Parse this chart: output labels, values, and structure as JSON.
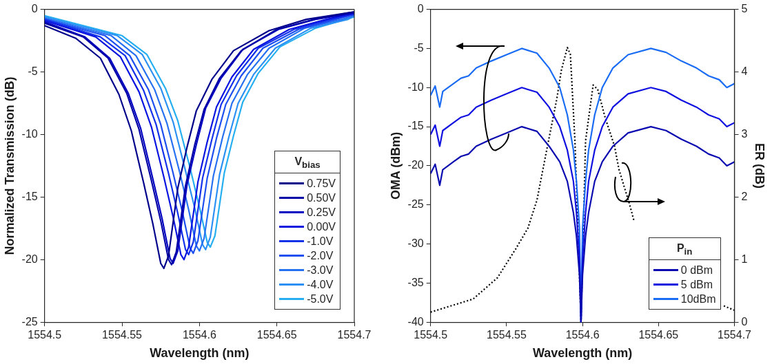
{
  "chart_data": [
    {
      "type": "line",
      "xlabel": "Wavelength (nm)",
      "ylabel": "Normalized Transmission (dB)",
      "legend_title": "V$_{bias}$",
      "xlim": [
        1554.5,
        1554.7
      ],
      "xticks": [
        1554.5,
        1554.55,
        1554.6,
        1554.65,
        1554.7
      ],
      "ylim": [
        -25,
        0
      ],
      "yticks": [
        -25,
        -20,
        -15,
        -10,
        -5,
        0
      ],
      "grid": false,
      "legend": "bottom right",
      "marker": "none",
      "line_style": "solid",
      "series": [
        {
          "name": "0.75V",
          "color": "#00008b",
          "x": [
            1554.5,
            1554.52,
            1554.536,
            1554.548,
            1554.556,
            1554.564,
            1554.57,
            1554.575,
            1554.577,
            1554.58,
            1554.586,
            1554.592,
            1554.598,
            1554.608,
            1554.622,
            1554.645,
            1554.669,
            1554.7
          ],
          "values": [
            -1.3,
            -2.3,
            -3.9,
            -6.8,
            -9.7,
            -13.9,
            -17.2,
            -20.3,
            -20.7,
            -19.7,
            -14.3,
            -11.0,
            -8.1,
            -5.6,
            -3.3,
            -1.7,
            -0.8,
            -0.2
          ]
        },
        {
          "name": "0.50V",
          "color": "#0000a6",
          "x": [
            1554.5,
            1554.525,
            1554.541,
            1554.553,
            1554.561,
            1554.569,
            1554.575,
            1554.58,
            1554.582,
            1554.585,
            1554.591,
            1554.597,
            1554.603,
            1554.613,
            1554.627,
            1554.65,
            1554.674,
            1554.7
          ],
          "values": [
            -1.1,
            -2.2,
            -3.9,
            -6.7,
            -9.6,
            -13.7,
            -16.9,
            -20.0,
            -20.4,
            -19.4,
            -14.1,
            -10.8,
            -8.0,
            -5.5,
            -3.3,
            -1.6,
            -0.8,
            -0.2
          ]
        },
        {
          "name": "0.25V",
          "color": "#0000c2",
          "x": [
            1554.5,
            1554.526,
            1554.542,
            1554.554,
            1554.562,
            1554.57,
            1554.576,
            1554.581,
            1554.583,
            1554.586,
            1554.592,
            1554.598,
            1554.604,
            1554.614,
            1554.628,
            1554.651,
            1554.675,
            1554.7
          ],
          "values": [
            -1.0,
            -2.2,
            -3.9,
            -6.7,
            -9.5,
            -13.6,
            -16.8,
            -19.9,
            -20.3,
            -19.3,
            -14.0,
            -10.8,
            -7.9,
            -5.5,
            -3.2,
            -1.6,
            -0.8,
            -0.3
          ]
        },
        {
          "name": "0.00V",
          "color": "#0a14e0",
          "x": [
            1554.5,
            1554.533,
            1554.549,
            1554.561,
            1554.569,
            1554.577,
            1554.583,
            1554.588,
            1554.59,
            1554.593,
            1554.599,
            1554.605,
            1554.611,
            1554.621,
            1554.635,
            1554.658,
            1554.682,
            1554.7
          ],
          "values": [
            -0.9,
            -2.2,
            -3.8,
            -6.6,
            -9.4,
            -13.4,
            -16.6,
            -19.6,
            -20.0,
            -19.0,
            -13.8,
            -10.6,
            -7.8,
            -5.4,
            -3.2,
            -1.6,
            -0.8,
            -0.3
          ]
        },
        {
          "name": "-1.0V",
          "color": "#1432ea",
          "x": [
            1554.5,
            1554.536,
            1554.552,
            1554.564,
            1554.572,
            1554.58,
            1554.586,
            1554.591,
            1554.593,
            1554.596,
            1554.602,
            1554.608,
            1554.614,
            1554.624,
            1554.638,
            1554.661,
            1554.685,
            1554.7
          ],
          "values": [
            -0.8,
            -2.2,
            -3.7,
            -6.5,
            -9.2,
            -13.1,
            -16.3,
            -19.2,
            -19.6,
            -18.6,
            -13.5,
            -10.4,
            -7.6,
            -5.3,
            -3.1,
            -1.6,
            -0.8,
            -0.4
          ]
        },
        {
          "name": "-2.0V",
          "color": "#1e50f0",
          "x": [
            1554.5,
            1554.539,
            1554.555,
            1554.567,
            1554.575,
            1554.583,
            1554.589,
            1554.594,
            1554.596,
            1554.599,
            1554.605,
            1554.611,
            1554.617,
            1554.627,
            1554.641,
            1554.664,
            1554.688,
            1554.7
          ],
          "values": [
            -0.8,
            -2.1,
            -3.7,
            -6.4,
            -9.2,
            -13.1,
            -16.2,
            -19.1,
            -19.5,
            -18.5,
            -13.5,
            -10.3,
            -7.6,
            -5.3,
            -3.1,
            -1.6,
            -0.8,
            -0.4
          ]
        },
        {
          "name": "-3.0V",
          "color": "#2670f2",
          "x": [
            1554.5,
            1554.543,
            1554.559,
            1554.571,
            1554.579,
            1554.587,
            1554.593,
            1554.598,
            1554.6,
            1554.603,
            1554.609,
            1554.615,
            1554.621,
            1554.631,
            1554.645,
            1554.668,
            1554.692,
            1554.7
          ],
          "values": [
            -0.7,
            -2.1,
            -3.7,
            -6.4,
            -9.1,
            -12.9,
            -16.0,
            -18.9,
            -19.3,
            -18.3,
            -13.3,
            -10.2,
            -7.5,
            -5.2,
            -3.1,
            -1.5,
            -0.8,
            -0.5
          ]
        },
        {
          "name": "-4.0V",
          "color": "#2a90f4",
          "x": [
            1554.5,
            1554.547,
            1554.563,
            1554.575,
            1554.583,
            1554.591,
            1554.597,
            1554.602,
            1554.604,
            1554.607,
            1554.613,
            1554.619,
            1554.625,
            1554.635,
            1554.649,
            1554.672,
            1554.696,
            1554.7
          ],
          "values": [
            -0.6,
            -2.1,
            -3.6,
            -6.3,
            -9.0,
            -12.9,
            -15.9,
            -18.8,
            -19.2,
            -18.2,
            -13.2,
            -10.2,
            -7.5,
            -5.2,
            -3.1,
            -1.5,
            -0.8,
            -0.5
          ]
        },
        {
          "name": "-5.0V",
          "color": "#26aff0",
          "x": [
            1554.5,
            1554.55,
            1554.566,
            1554.578,
            1554.586,
            1554.594,
            1554.6,
            1554.605,
            1554.607,
            1554.61,
            1554.616,
            1554.622,
            1554.628,
            1554.638,
            1554.652,
            1554.675,
            1554.7
          ],
          "values": [
            -0.5,
            -2.1,
            -3.6,
            -6.3,
            -8.9,
            -12.7,
            -15.8,
            -18.6,
            -19.0,
            -18.1,
            -13.1,
            -10.1,
            -7.4,
            -5.1,
            -3.0,
            -1.5,
            -0.6
          ]
        }
      ]
    },
    {
      "type": "line",
      "xlabel": "Wavelength (nm)",
      "ylabel": "OMA (dBm)",
      "y2label": "ER (dB)",
      "legend_title": "P$_{in}$",
      "xlim": [
        1554.5,
        1554.7
      ],
      "xticks": [
        1554.5,
        1554.55,
        1554.6,
        1554.65,
        1554.7
      ],
      "ylim": [
        -40,
        0
      ],
      "yticks": [
        -40,
        -35,
        -30,
        -25,
        -20,
        -15,
        -10,
        -5,
        0
      ],
      "y2lim": [
        0,
        5
      ],
      "y2ticks": [
        0,
        1,
        2,
        3,
        4,
        5
      ],
      "grid": false,
      "legend": "bottom right",
      "marker": "none",
      "series": [
        {
          "name": "0 dBm",
          "color": "#0a0ab0",
          "x": [
            1554.5,
            1554.503,
            1554.506,
            1554.508,
            1554.515,
            1554.52,
            1554.525,
            1554.53,
            1554.54,
            1554.55,
            1554.56,
            1554.57,
            1554.578,
            1554.585,
            1554.59,
            1554.594,
            1554.596,
            1554.598,
            1554.599,
            1554.6,
            1554.602,
            1554.604,
            1554.608,
            1554.613,
            1554.62,
            1554.63,
            1554.645,
            1554.655,
            1554.665,
            1554.675,
            1554.683,
            1554.69,
            1554.695,
            1554.7
          ],
          "values": [
            -21,
            -19.8,
            -22.5,
            -20.5,
            -19.5,
            -18.8,
            -18.5,
            -17.5,
            -16.6,
            -15.8,
            -15.0,
            -15.6,
            -17.5,
            -19.5,
            -22,
            -26,
            -29,
            -34,
            -40,
            -34,
            -29,
            -26,
            -22,
            -19.5,
            -17.5,
            -15.8,
            -15.0,
            -15.5,
            -16.6,
            -17.5,
            -18.5,
            -19,
            -20,
            -19.5
          ]
        },
        {
          "name": "5 dBm",
          "color": "#1010e0",
          "x": [
            1554.5,
            1554.503,
            1554.506,
            1554.508,
            1554.515,
            1554.52,
            1554.525,
            1554.53,
            1554.54,
            1554.55,
            1554.56,
            1554.57,
            1554.578,
            1554.585,
            1554.59,
            1554.594,
            1554.596,
            1554.598,
            1554.599,
            1554.6,
            1554.602,
            1554.604,
            1554.608,
            1554.613,
            1554.62,
            1554.63,
            1554.645,
            1554.655,
            1554.665,
            1554.675,
            1554.683,
            1554.69,
            1554.695,
            1554.7
          ],
          "values": [
            -16,
            -14.8,
            -17.5,
            -15.5,
            -14.5,
            -13.8,
            -13.5,
            -12.5,
            -11.6,
            -10.8,
            -10.0,
            -10.6,
            -12.5,
            -15,
            -18,
            -22,
            -26,
            -32,
            -40,
            -32,
            -26,
            -22,
            -18,
            -15,
            -12.5,
            -10.8,
            -10.0,
            -10.5,
            -11.6,
            -12.5,
            -13.5,
            -14,
            -15,
            -14.5
          ]
        },
        {
          "name": "10dBm",
          "color": "#1a6cf5",
          "x": [
            1554.5,
            1554.503,
            1554.506,
            1554.508,
            1554.515,
            1554.52,
            1554.525,
            1554.53,
            1554.54,
            1554.55,
            1554.56,
            1554.57,
            1554.578,
            1554.585,
            1554.59,
            1554.594,
            1554.596,
            1554.598,
            1554.599,
            1554.6,
            1554.602,
            1554.604,
            1554.608,
            1554.613,
            1554.62,
            1554.63,
            1554.645,
            1554.655,
            1554.665,
            1554.675,
            1554.683,
            1554.69,
            1554.695,
            1554.7
          ],
          "values": [
            -11,
            -9.8,
            -12.5,
            -10.5,
            -9.5,
            -8.8,
            -8.5,
            -7.5,
            -6.6,
            -5.8,
            -5.0,
            -5.6,
            -7.5,
            -10,
            -13.5,
            -18,
            -22,
            -28,
            -40,
            -28,
            -22,
            -18,
            -13.5,
            -10,
            -7.5,
            -5.8,
            -5.0,
            -5.5,
            -6.6,
            -7.5,
            -8.5,
            -9,
            -10,
            -9.5
          ]
        },
        {
          "color": "#000000",
          "axis": "y2",
          "line_style": "dotted",
          "x": [
            1554.5,
            1554.528,
            1554.544,
            1554.556,
            1554.564,
            1554.57,
            1554.576,
            1554.583,
            1554.586,
            1554.59,
            1554.592,
            1554.595,
            1554.599,
            1554.602,
            1554.607,
            1554.61,
            1554.615,
            1554.621,
            1554.624,
            1554.631,
            1554.634,
            1554.66,
            1554.693,
            1554.7
          ],
          "values": [
            0.16,
            0.37,
            0.71,
            1.17,
            1.5,
            1.95,
            2.7,
            3.56,
            4.02,
            4.39,
            4.28,
            2.9,
            0,
            2.9,
            3.79,
            3.72,
            3.26,
            2.82,
            2.44,
            1.88,
            1.61,
            null,
            0.26,
            0.19
          ]
        }
      ]
    }
  ]
}
